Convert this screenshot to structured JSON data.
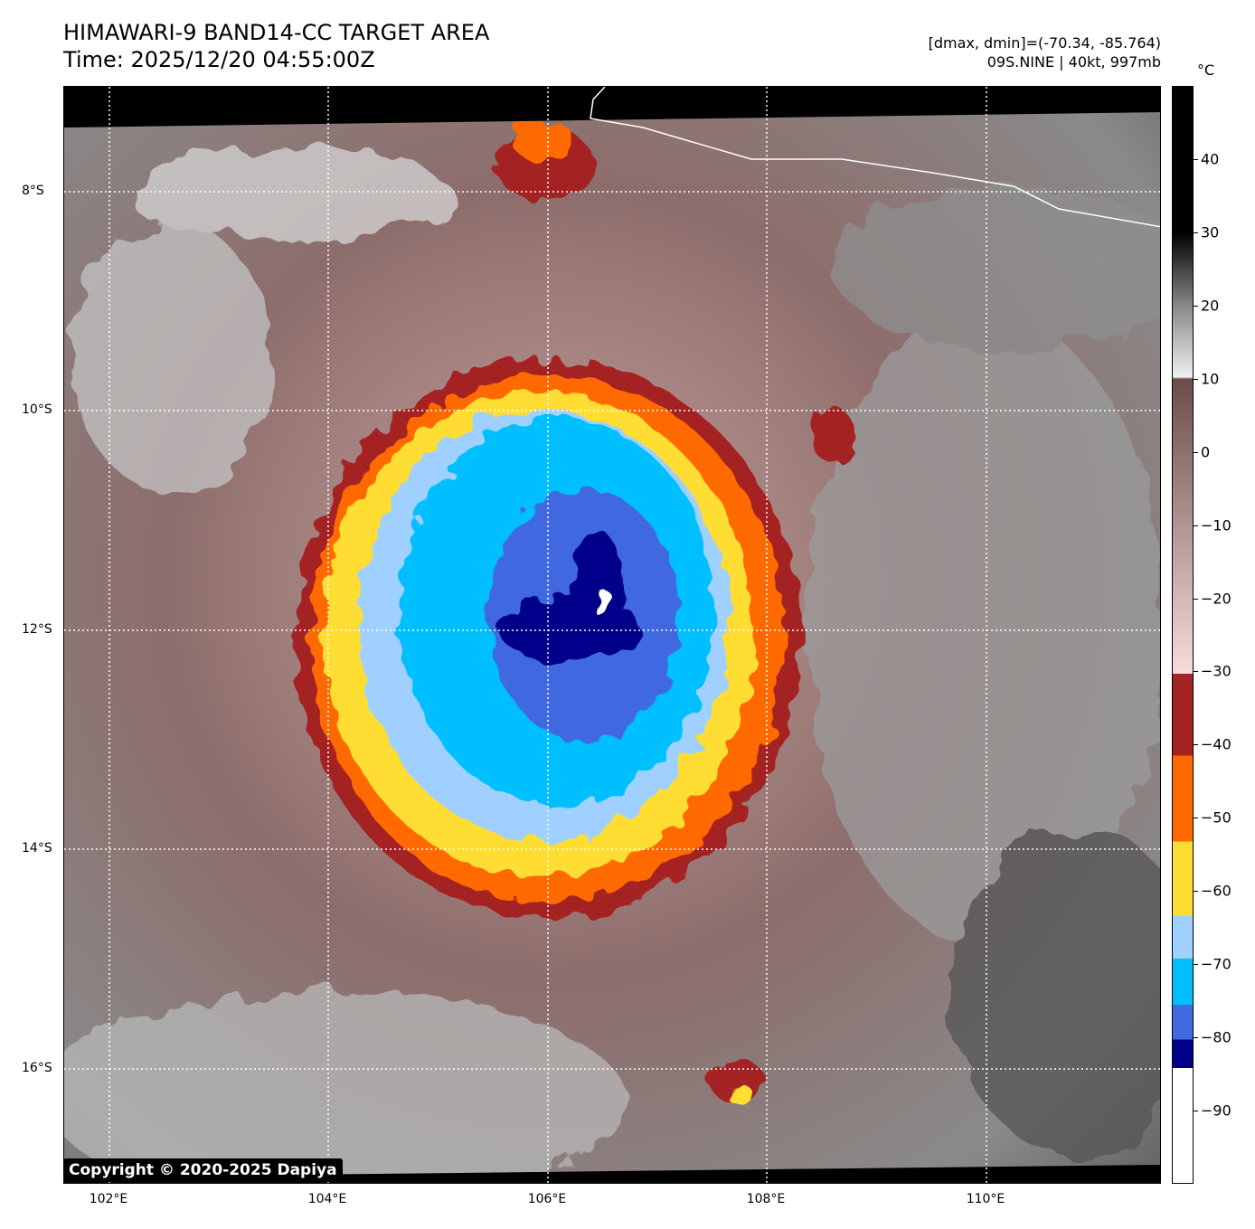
{
  "header": {
    "title": "HIMAWARI-9 BAND14-CC TARGET AREA",
    "time": "Time: 2025/12/20 04:55:00Z",
    "stats": "[dmax, dmin]=(-70.34, -85.764)",
    "storm": "09S.NINE | 40kt, 997mb"
  },
  "colorbar": {
    "unit": "°C",
    "range": [
      -100,
      50
    ],
    "ticks": [
      {
        "v": 40,
        "l": "40"
      },
      {
        "v": 30,
        "l": "30"
      },
      {
        "v": 20,
        "l": "20"
      },
      {
        "v": 10,
        "l": "10"
      },
      {
        "v": 0,
        "l": "0"
      },
      {
        "v": -10,
        "l": "−10"
      },
      {
        "v": -20,
        "l": "−20"
      },
      {
        "v": -30,
        "l": "−30"
      },
      {
        "v": -40,
        "l": "−40"
      },
      {
        "v": -50,
        "l": "−50"
      },
      {
        "v": -60,
        "l": "−60"
      },
      {
        "v": -70,
        "l": "−70"
      },
      {
        "v": -80,
        "l": "−80"
      },
      {
        "v": -90,
        "l": "−90"
      }
    ],
    "colors": {
      "navy": "#00008b",
      "royal": "#4169e1",
      "cyan": "#00bfff",
      "lightblue": "#a0d0ff",
      "yellow": "#ffdd33",
      "orange": "#ff6a00",
      "red": "#a52323",
      "pink": "#f8dcdc",
      "brown": "#6b4c4a"
    }
  },
  "axes": {
    "lon_labels": [
      "102°E",
      "104°E",
      "106°E",
      "108°E",
      "110°E"
    ],
    "lat_labels": [
      "8°S",
      "10°S",
      "12°S",
      "14°S",
      "16°S"
    ]
  },
  "copyright": "Copyright © 2020-2025 Dapiya"
}
